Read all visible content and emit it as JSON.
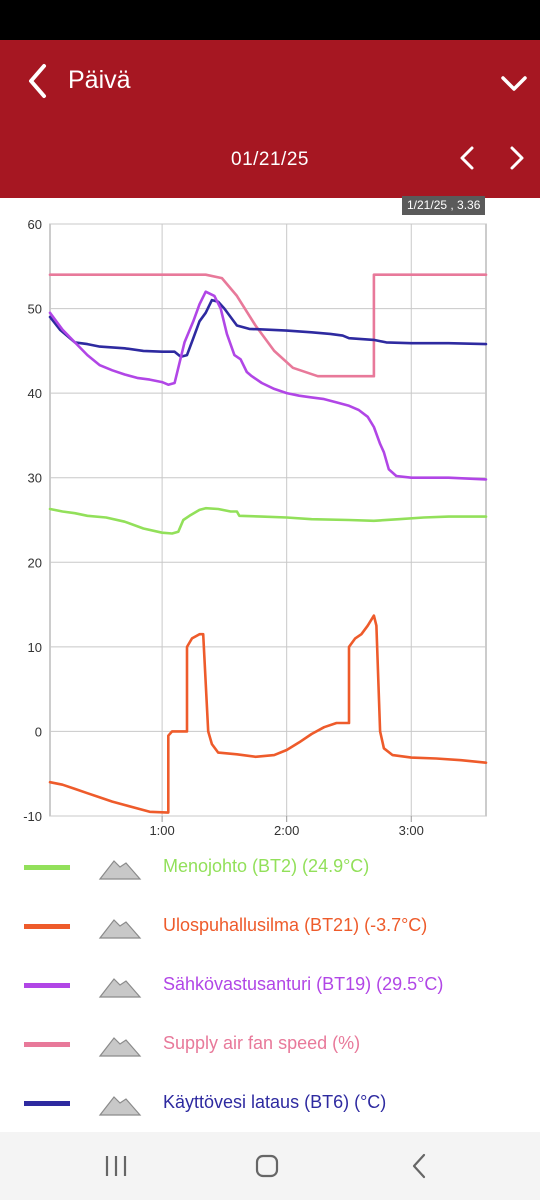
{
  "header": {
    "title": "Päivä"
  },
  "date_bar": {
    "date": "01/21/25"
  },
  "tooltip": {
    "text": "1/21/25 , 3.36"
  },
  "chart_data": {
    "type": "line",
    "title": "",
    "xlabel": "",
    "ylabel": "",
    "x_unit": "hours",
    "xlim": [
      0.1,
      3.6
    ],
    "ylim": [
      -10,
      60
    ],
    "y_ticks": [
      60,
      50,
      40,
      30,
      20,
      10,
      0,
      -10
    ],
    "y_tick_labels": [
      "60",
      "50",
      "40",
      "30",
      "20",
      "10",
      "0",
      "-10"
    ],
    "x_ticks": [
      1,
      2,
      3
    ],
    "x_tick_labels": [
      "1:00",
      "2:00",
      "3:00"
    ],
    "grid": true,
    "legend_position": "bottom",
    "series": [
      {
        "name": "Supply air fan speed (%)",
        "color": "#e8799a",
        "points": [
          [
            0.1,
            54
          ],
          [
            1.35,
            54
          ],
          [
            1.48,
            53.6
          ],
          [
            1.6,
            51.5
          ],
          [
            1.75,
            48
          ],
          [
            1.9,
            45
          ],
          [
            2.05,
            43
          ],
          [
            2.25,
            42
          ],
          [
            2.7,
            42
          ],
          [
            2.7,
            54
          ],
          [
            3.6,
            54
          ]
        ]
      },
      {
        "name": "Käyttövesi lataus (BT6) (°C)",
        "color": "#2e2aa0",
        "points": [
          [
            0.1,
            49
          ],
          [
            0.18,
            47.5
          ],
          [
            0.3,
            46
          ],
          [
            0.4,
            45.8
          ],
          [
            0.5,
            45.5
          ],
          [
            0.7,
            45.3
          ],
          [
            0.85,
            45
          ],
          [
            1.0,
            44.9
          ],
          [
            1.1,
            44.9
          ],
          [
            1.15,
            44.3
          ],
          [
            1.2,
            44.5
          ],
          [
            1.25,
            46.5
          ],
          [
            1.3,
            48.5
          ],
          [
            1.35,
            49.5
          ],
          [
            1.4,
            51
          ],
          [
            1.45,
            50.8
          ],
          [
            1.5,
            50
          ],
          [
            1.55,
            49
          ],
          [
            1.6,
            48
          ],
          [
            1.7,
            47.6
          ],
          [
            1.85,
            47.5
          ],
          [
            2.0,
            47.4
          ],
          [
            2.2,
            47.2
          ],
          [
            2.35,
            47
          ],
          [
            2.45,
            46.8
          ],
          [
            2.5,
            46.5
          ],
          [
            2.7,
            46.3
          ],
          [
            2.8,
            46
          ],
          [
            3.0,
            45.9
          ],
          [
            3.3,
            45.9
          ],
          [
            3.6,
            45.8
          ]
        ]
      },
      {
        "name": "Sähkövastusanturi (BT19) (29.5°C)",
        "color": "#b146e6",
        "points": [
          [
            0.1,
            49.5
          ],
          [
            0.2,
            47.5
          ],
          [
            0.3,
            46
          ],
          [
            0.4,
            44.5
          ],
          [
            0.5,
            43.3
          ],
          [
            0.6,
            42.7
          ],
          [
            0.7,
            42.2
          ],
          [
            0.8,
            41.8
          ],
          [
            0.9,
            41.6
          ],
          [
            1.0,
            41.3
          ],
          [
            1.05,
            41
          ],
          [
            1.1,
            41.2
          ],
          [
            1.13,
            43
          ],
          [
            1.18,
            46
          ],
          [
            1.25,
            48.5
          ],
          [
            1.3,
            50.5
          ],
          [
            1.35,
            52
          ],
          [
            1.42,
            51.5
          ],
          [
            1.47,
            50
          ],
          [
            1.52,
            47
          ],
          [
            1.58,
            44.5
          ],
          [
            1.63,
            44
          ],
          [
            1.68,
            42.5
          ],
          [
            1.72,
            42
          ],
          [
            1.8,
            41.2
          ],
          [
            1.9,
            40.5
          ],
          [
            2.0,
            40
          ],
          [
            2.1,
            39.7
          ],
          [
            2.2,
            39.5
          ],
          [
            2.3,
            39.3
          ],
          [
            2.4,
            38.9
          ],
          [
            2.5,
            38.5
          ],
          [
            2.58,
            38
          ],
          [
            2.65,
            37.2
          ],
          [
            2.7,
            36
          ],
          [
            2.75,
            34
          ],
          [
            2.78,
            33
          ],
          [
            2.82,
            31
          ],
          [
            2.88,
            30.2
          ],
          [
            3.0,
            30
          ],
          [
            3.3,
            30
          ],
          [
            3.6,
            29.8
          ]
        ]
      },
      {
        "name": "Menojohto (BT2) (24.9°C)",
        "color": "#92e05a",
        "points": [
          [
            0.1,
            26.3
          ],
          [
            0.2,
            26
          ],
          [
            0.3,
            25.8
          ],
          [
            0.4,
            25.5
          ],
          [
            0.55,
            25.3
          ],
          [
            0.7,
            24.8
          ],
          [
            0.85,
            24
          ],
          [
            1.0,
            23.5
          ],
          [
            1.08,
            23.4
          ],
          [
            1.13,
            23.6
          ],
          [
            1.17,
            25
          ],
          [
            1.22,
            25.5
          ],
          [
            1.3,
            26.2
          ],
          [
            1.35,
            26.4
          ],
          [
            1.45,
            26.3
          ],
          [
            1.55,
            26
          ],
          [
            1.6,
            26
          ],
          [
            1.62,
            25.5
          ],
          [
            1.8,
            25.4
          ],
          [
            2.0,
            25.3
          ],
          [
            2.2,
            25.1
          ],
          [
            2.5,
            25.0
          ],
          [
            2.7,
            24.9
          ],
          [
            2.9,
            25.1
          ],
          [
            3.1,
            25.3
          ],
          [
            3.3,
            25.4
          ],
          [
            3.6,
            25.4
          ]
        ]
      },
      {
        "name": "Ulospuhallusilma (BT21) (-3.7°C)",
        "color": "#ee5b2b",
        "points": [
          [
            0.1,
            -6
          ],
          [
            0.2,
            -6.3
          ],
          [
            0.3,
            -6.8
          ],
          [
            0.4,
            -7.3
          ],
          [
            0.5,
            -7.8
          ],
          [
            0.6,
            -8.3
          ],
          [
            0.7,
            -8.7
          ],
          [
            0.8,
            -9.1
          ],
          [
            0.9,
            -9.5
          ],
          [
            1.05,
            -9.6
          ],
          [
            1.05,
            -0.5
          ],
          [
            1.08,
            0
          ],
          [
            1.2,
            0
          ],
          [
            1.2,
            10
          ],
          [
            1.24,
            11
          ],
          [
            1.3,
            11.5
          ],
          [
            1.33,
            11.5
          ],
          [
            1.37,
            0
          ],
          [
            1.4,
            -1.5
          ],
          [
            1.45,
            -2.5
          ],
          [
            1.6,
            -2.7
          ],
          [
            1.75,
            -3.0
          ],
          [
            1.9,
            -2.8
          ],
          [
            2.0,
            -2.2
          ],
          [
            2.1,
            -1.3
          ],
          [
            2.2,
            -0.3
          ],
          [
            2.3,
            0.5
          ],
          [
            2.4,
            1.0
          ],
          [
            2.5,
            1.0
          ],
          [
            2.5,
            10
          ],
          [
            2.55,
            11
          ],
          [
            2.6,
            11.5
          ],
          [
            2.65,
            12.5
          ],
          [
            2.7,
            13.7
          ],
          [
            2.72,
            12.5
          ],
          [
            2.75,
            0
          ],
          [
            2.78,
            -2
          ],
          [
            2.85,
            -2.8
          ],
          [
            3.0,
            -3.1
          ],
          [
            3.2,
            -3.2
          ],
          [
            3.4,
            -3.4
          ],
          [
            3.6,
            -3.7
          ]
        ]
      }
    ]
  },
  "legend": {
    "toggle_icon": "mountain-icon",
    "items": [
      {
        "label": "Menojohto (BT2) (24.9°C)",
        "color": "#92e05a"
      },
      {
        "label": "Ulospuhallusilma (BT21) (-3.7°C)",
        "color": "#ee5b2b"
      },
      {
        "label": "Sähkövastusanturi (BT19) (29.5°C)",
        "color": "#b146e6"
      },
      {
        "label": "Supply air fan speed (%)",
        "color": "#e8799a"
      },
      {
        "label": "Käyttövesi lataus (BT6) (°C)",
        "color": "#2e2aa0"
      }
    ]
  }
}
